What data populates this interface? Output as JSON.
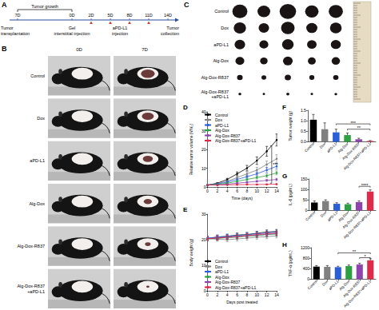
{
  "timeline": {
    "label": "A",
    "ticks": [
      "7D",
      "0D",
      "2D",
      "5D",
      "8D",
      "11D",
      "14D"
    ],
    "span": {
      "text": "Tumor growth",
      "from": "7D",
      "to": "0D"
    },
    "events": [
      {
        "text": "Tumor transplantation",
        "at": [
          "7D"
        ]
      },
      {
        "text": "Gel interstitial injection",
        "at": [
          "0D"
        ]
      },
      {
        "text": "aPD-L1 injection",
        "at": [
          "2D",
          "5D",
          "8D",
          "11D"
        ]
      },
      {
        "text": "Tumor collection",
        "at": [
          "14D"
        ]
      }
    ]
  },
  "mouse_photos": {
    "label": "B",
    "columns": [
      "0D",
      "7D"
    ],
    "rows": [
      "Control",
      "Dox",
      "aPD-L1",
      "Alg-Dox",
      "Alg-Dox-R837",
      "Alg-Dox-R837 +aPD-L1"
    ]
  },
  "tumor_photos": {
    "label": "C",
    "tumors_per_row": 5,
    "rows": [
      "Control",
      "Dox",
      "aPD-L1",
      "Alg-Dox",
      "Alg-Dox-R837",
      "Alg-Dox-R837 +aPD-L1"
    ]
  },
  "chart_data": [
    {
      "label": "D",
      "type": "line",
      "x_label": "Time (days)",
      "y_label": "Relative tumor volume (V/V₀)",
      "x": [
        0,
        2,
        4,
        6,
        8,
        10,
        12,
        14
      ],
      "xlim": [
        0,
        14
      ],
      "xticks": [
        0,
        2,
        4,
        6,
        8,
        10,
        12,
        14
      ],
      "ylim": [
        0,
        40
      ],
      "yticks": [
        0,
        10,
        20,
        30,
        40
      ],
      "grid": false,
      "legend": "upper left",
      "marker": "circle",
      "series": [
        {
          "name": "Control",
          "color": "#000000",
          "values": [
            1,
            2,
            4,
            7,
            10,
            14,
            19,
            25
          ],
          "errors": [
            0,
            0.3,
            0.6,
            1.0,
            1.5,
            2.0,
            2.6,
            3.2
          ]
        },
        {
          "name": "Dox",
          "color": "#808080",
          "values": [
            1,
            1.8,
            3,
            5,
            7,
            9,
            12,
            15
          ],
          "errors": [
            0,
            0.3,
            0.5,
            0.8,
            1.1,
            1.4,
            1.8,
            2.2
          ]
        },
        {
          "name": "aPD-L1",
          "color": "#2b5fd9",
          "values": [
            1,
            1.6,
            2.6,
            4,
            5.5,
            7,
            9,
            11
          ],
          "errors": [
            0,
            0.2,
            0.4,
            0.6,
            0.8,
            1.0,
            1.3,
            1.6
          ]
        },
        {
          "name": "Alg-Dox",
          "color": "#2ea043",
          "values": [
            1,
            1.4,
            2,
            3,
            4,
            5,
            6,
            7.5
          ],
          "errors": [
            0,
            0.2,
            0.3,
            0.4,
            0.6,
            0.7,
            0.9,
            1.0
          ]
        },
        {
          "name": "Alg-Dox-R837",
          "color": "#8e44ad",
          "values": [
            1,
            1.2,
            1.5,
            2,
            2.5,
            3,
            3.5,
            4
          ],
          "errors": [
            0,
            0.1,
            0.2,
            0.3,
            0.4,
            0.4,
            0.5,
            0.6
          ]
        },
        {
          "name": "Alg-Dox-R837+aPD-L1",
          "color": "#e02a4a",
          "values": [
            1,
            1,
            1.1,
            1.2,
            1.3,
            1.3,
            1.4,
            1.5
          ],
          "errors": [
            0,
            0.1,
            0.1,
            0.2,
            0.2,
            0.2,
            0.2,
            0.3
          ]
        }
      ],
      "annotations": [
        {
          "text": "***",
          "x": 13,
          "from": 2,
          "to": 22
        }
      ]
    },
    {
      "label": "E",
      "type": "line",
      "x_label": "Days post treated",
      "y_label": "Body weight (g)",
      "x": [
        0,
        2,
        4,
        6,
        8,
        10,
        12,
        14
      ],
      "xlim": [
        0,
        14
      ],
      "xticks": [
        0,
        2,
        4,
        6,
        8,
        10,
        12,
        14
      ],
      "ylim": [
        0,
        30
      ],
      "yticks": [
        0,
        10,
        20,
        30
      ],
      "grid": false,
      "legend": "lower left",
      "marker": "circle",
      "series": [
        {
          "name": "Control",
          "color": "#000000",
          "values": [
            20.5,
            21,
            21.3,
            21.8,
            22,
            22.5,
            23,
            23.2
          ],
          "errors": [
            0.8,
            0.8,
            0.8,
            0.8,
            0.8,
            0.8,
            0.8,
            0.8
          ]
        },
        {
          "name": "Dox",
          "color": "#808080",
          "values": [
            20.4,
            20.2,
            20,
            20.3,
            20.6,
            21,
            21.2,
            21.5
          ],
          "errors": [
            0.8,
            0.8,
            0.8,
            0.8,
            0.8,
            0.8,
            0.8,
            0.8
          ]
        },
        {
          "name": "aPD-L1",
          "color": "#2b5fd9",
          "values": [
            20.6,
            21,
            21.4,
            21.6,
            22,
            22.3,
            22.6,
            23
          ],
          "errors": [
            0.8,
            0.8,
            0.8,
            0.8,
            0.8,
            0.8,
            0.8,
            0.8
          ]
        },
        {
          "name": "Alg-Dox",
          "color": "#2ea043",
          "values": [
            20.3,
            20.5,
            20.8,
            21,
            21.4,
            21.6,
            22,
            22.2
          ],
          "errors": [
            0.8,
            0.8,
            0.8,
            0.8,
            0.8,
            0.8,
            0.8,
            0.8
          ]
        },
        {
          "name": "Alg-Dox-R837",
          "color": "#8e44ad",
          "values": [
            20.5,
            20.7,
            21,
            21.3,
            21.5,
            21.8,
            22.1,
            22.4
          ],
          "errors": [
            0.8,
            0.8,
            0.8,
            0.8,
            0.8,
            0.8,
            0.8,
            0.8
          ]
        },
        {
          "name": "Alg-Dox-R837+aPD-L1",
          "color": "#e02a4a",
          "values": [
            20.4,
            20.6,
            20.9,
            21.2,
            21.6,
            22,
            22.3,
            22.6
          ],
          "errors": [
            0.8,
            0.8,
            0.8,
            0.8,
            0.8,
            0.8,
            0.8,
            0.8
          ]
        }
      ]
    },
    {
      "label": "F",
      "type": "bar",
      "y_label": "Tumor weight (g)",
      "categories": [
        "Control",
        "Dox",
        "aPD-L1",
        "Alg-Dox",
        "Alg-Dox-R837",
        "Alg-Dox-R837+aPD-L1"
      ],
      "values": [
        1.05,
        0.6,
        0.45,
        0.32,
        0.12,
        0.04
      ],
      "errors": [
        0.25,
        0.3,
        0.15,
        0.1,
        0.05,
        0.02
      ],
      "colors": [
        "#000000",
        "#808080",
        "#2b5fd9",
        "#2ea043",
        "#8e44ad",
        "#e02a4a"
      ],
      "ylim": [
        0,
        1.5
      ],
      "yticks": [
        {
          "value": 0,
          "label": "0.0"
        },
        0.5,
        {
          "value": 1,
          "label": "1.0"
        },
        1.5
      ],
      "grid": false,
      "annotations": [
        {
          "text": "***",
          "from": "aPD-L1",
          "to": "Alg-Dox-R837+aPD-L1",
          "y": 0.85
        },
        {
          "text": "**",
          "from": "Alg-Dox",
          "to": "Alg-Dox-R837+aPD-L1",
          "y": 0.6
        }
      ]
    },
    {
      "label": "G",
      "type": "bar",
      "y_label": "IL-6 (pg/mL)",
      "categories": [
        "Control",
        "Dox",
        "aPD-L1",
        "Alg-Dox",
        "Alg-Dox-R837",
        "Alg-Dox-R837+aPD-L1"
      ],
      "values": [
        38,
        45,
        32,
        30,
        40,
        90
      ],
      "errors": [
        8,
        6,
        5,
        5,
        6,
        8
      ],
      "colors": [
        "#000000",
        "#808080",
        "#2b5fd9",
        "#2ea043",
        "#8e44ad",
        "#e02a4a"
      ],
      "ylim": [
        0,
        150
      ],
      "yticks": [
        0,
        50,
        100,
        150
      ],
      "grid": false,
      "annotations": [
        {
          "text": "****",
          "from": "Alg-Dox-R837",
          "to": "Alg-Dox-R837+aPD-L1",
          "y": 115
        }
      ]
    },
    {
      "label": "H",
      "type": "bar",
      "y_label": "TNF-α (pg/mL)",
      "categories": [
        "Control",
        "Dox",
        "aPD-L1",
        "Alg-Dox",
        "Alg-Dox-R837",
        "Alg-Dox-R837+aPD-L1"
      ],
      "values": [
        480,
        470,
        460,
        500,
        560,
        720
      ],
      "errors": [
        40,
        50,
        35,
        40,
        45,
        60
      ],
      "colors": [
        "#000000",
        "#808080",
        "#2b5fd9",
        "#2ea043",
        "#8e44ad",
        "#e02a4a"
      ],
      "ylim": [
        0,
        1200
      ],
      "yticks": [
        0,
        400,
        800,
        1200
      ],
      "grid": false,
      "annotations": [
        {
          "text": "*",
          "from": "Alg-Dox-R837",
          "to": "Alg-Dox-R837+aPD-L1",
          "y": 820
        },
        {
          "text": "**",
          "from": "aPD-L1",
          "to": "Alg-Dox-R837+aPD-L1",
          "y": 1000
        }
      ]
    }
  ]
}
